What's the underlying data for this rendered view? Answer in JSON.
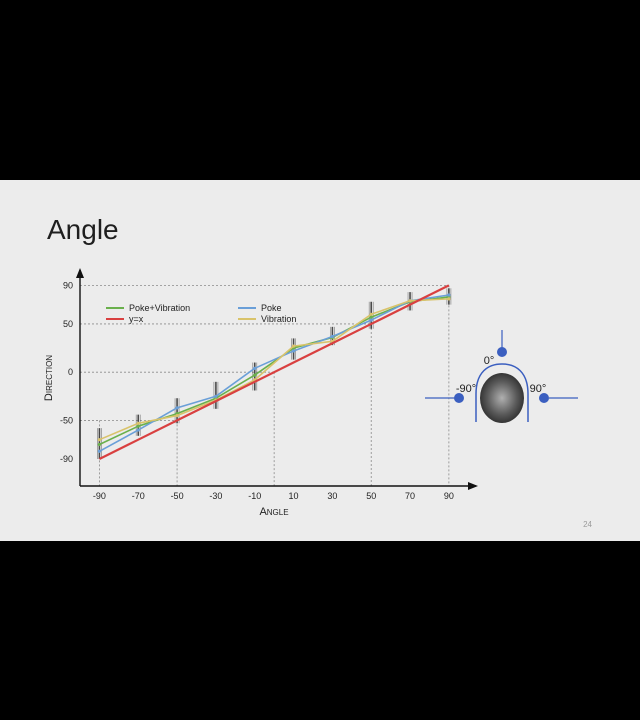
{
  "slide": {
    "title": "Angle",
    "page_number": "24"
  },
  "colors": {
    "poke_vibration": "#6ab04c",
    "poke": "#6a9fd8",
    "vibration": "#d9c36a",
    "identity": "#d94040",
    "errorbar": "#3a3a3a",
    "diagram_blue": "#3b5fc0"
  },
  "chart_data": {
    "type": "line",
    "xlabel": "Angle",
    "ylabel": "Direction",
    "x": [
      -90,
      -70,
      -50,
      -30,
      -10,
      10,
      30,
      50,
      70,
      90
    ],
    "x_ticks": [
      "-90",
      "-70",
      "-50",
      "-30",
      "-10",
      "10",
      "30",
      "50",
      "70",
      "90"
    ],
    "y_ticks": [
      "90",
      "50",
      "0",
      "-50",
      "-90"
    ],
    "y_tick_values": [
      90,
      50,
      0,
      -50,
      -90
    ],
    "xlim": [
      -100,
      105
    ],
    "ylim": [
      -118,
      108
    ],
    "guide_lines": [
      {
        "x": -90,
        "y": -50
      },
      {
        "x": -50,
        "y": -50
      },
      {
        "x": 0,
        "y": 0
      },
      {
        "x": 50,
        "y": 50
      },
      {
        "x": 90,
        "y": 90
      }
    ],
    "series": [
      {
        "name": "Poke+Vibration",
        "color_key": "poke_vibration",
        "values": [
          -75,
          -56,
          -43,
          -27,
          -3,
          25,
          36,
          57,
          73,
          78
        ]
      },
      {
        "name": "y=x",
        "color_key": "identity",
        "values": [
          -90,
          -70,
          -50,
          -30,
          -10,
          10,
          30,
          50,
          70,
          90
        ]
      },
      {
        "name": "Poke",
        "color_key": "poke",
        "values": [
          -82,
          -60,
          -37,
          -25,
          4,
          22,
          37,
          54,
          74,
          80
        ]
      },
      {
        "name": "Vibration",
        "color_key": "vibration",
        "values": [
          -70,
          -53,
          -45,
          -29,
          -8,
          27,
          32,
          60,
          74,
          76
        ]
      }
    ],
    "error_bars": [
      {
        "x": -90,
        "low": -90,
        "high": -58
      },
      {
        "x": -70,
        "low": -66,
        "high": -44
      },
      {
        "x": -50,
        "low": -53,
        "high": -27
      },
      {
        "x": -30,
        "low": -38,
        "high": -10
      },
      {
        "x": -10,
        "low": -19,
        "high": 10
      },
      {
        "x": 10,
        "low": 13,
        "high": 35
      },
      {
        "x": 30,
        "low": 28,
        "high": 47
      },
      {
        "x": 50,
        "low": 45,
        "high": 73
      },
      {
        "x": 70,
        "low": 64,
        "high": 83
      },
      {
        "x": 90,
        "low": 70,
        "high": 87
      }
    ],
    "legend": [
      {
        "label": "Poke+Vibration",
        "color_key": "poke_vibration"
      },
      {
        "label": "y=x",
        "color_key": "identity"
      },
      {
        "label": "Poke",
        "color_key": "poke"
      },
      {
        "label": "Vibration",
        "color_key": "vibration"
      }
    ]
  },
  "diagram": {
    "label_top": "0°",
    "label_left": "-90°",
    "label_right": "90°"
  }
}
